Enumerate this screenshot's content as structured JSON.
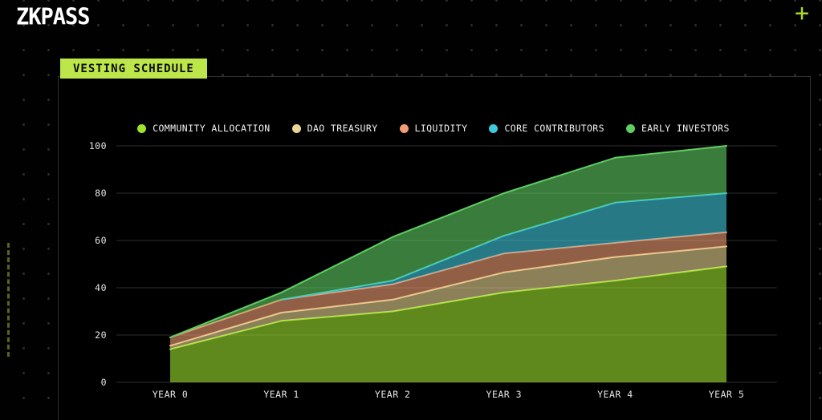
{
  "header": {
    "logo_text": "ZKPASS",
    "plus_label": "+"
  },
  "section": {
    "title": "VESTING SCHEDULE"
  },
  "colors": {
    "accent_lime": "#bde64b",
    "plus_icon": "#a9d62c",
    "panel_border": "#323232",
    "gridline": "#2e2e2e",
    "axis_text": "#e6e6e6",
    "background": "#000000"
  },
  "chart_data": {
    "type": "area",
    "stacked": true,
    "title": "VESTING SCHEDULE",
    "categories": [
      "YEAR 0",
      "YEAR 1",
      "YEAR 2",
      "YEAR 3",
      "YEAR 4",
      "YEAR 5"
    ],
    "xlabel": "",
    "ylabel": "",
    "ylim": [
      0,
      100
    ],
    "y_ticks": [
      0,
      20,
      40,
      60,
      80,
      100
    ],
    "grid": "horizontal",
    "legend_position": "top",
    "series": [
      {
        "name": "COMMUNITY ALLOCATION",
        "color": "#9ee42e",
        "values": [
          14,
          26,
          30,
          38,
          43,
          49
        ]
      },
      {
        "name": "DAO TREASURY",
        "color": "#ead694",
        "values": [
          1.5,
          3.5,
          5,
          8.5,
          10,
          8.5
        ]
      },
      {
        "name": "LIQUIDITY",
        "color": "#f29d74",
        "values": [
          3.5,
          5.5,
          6.5,
          8,
          6,
          6
        ]
      },
      {
        "name": "CORE CONTRIBUTORS",
        "color": "#3fc9dd",
        "values": [
          0,
          0,
          1.5,
          7.5,
          17,
          16.5
        ]
      },
      {
        "name": "EARLY INVESTORS",
        "color": "#5fce62",
        "values": [
          0,
          3,
          18.5,
          18,
          19,
          20
        ]
      }
    ],
    "stack_totals": [
      19,
      38,
      61.5,
      80,
      95,
      100
    ]
  }
}
